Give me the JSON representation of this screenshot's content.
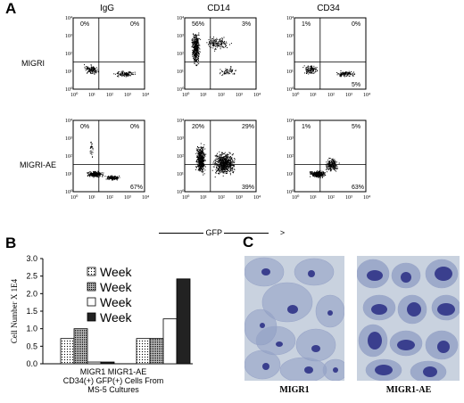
{
  "panelA": {
    "letter": "A",
    "columns": [
      "IgG",
      "CD14",
      "CD34"
    ],
    "rows": [
      "MIGRI",
      "MIGRI-AE"
    ],
    "x_axis_label": "GFP",
    "arrow_glyph": ">",
    "tick_labels": [
      "10⁰",
      "10¹",
      "10²",
      "10³",
      "10⁴"
    ],
    "plots": [
      {
        "row": "MIGRI",
        "col": "IgG",
        "quadrants": {
          "ul": "0%",
          "ur": "0%",
          "lr": ""
        }
      },
      {
        "row": "MIGRI",
        "col": "CD14",
        "quadrants": {
          "ul": "56%",
          "ur": "3%",
          "lr": ""
        }
      },
      {
        "row": "MIGRI",
        "col": "CD34",
        "quadrants": {
          "ul": "1%",
          "ur": "0%",
          "lr": "5%"
        }
      },
      {
        "row": "MIGRI-AE",
        "col": "IgG",
        "quadrants": {
          "ul": "0%",
          "ur": "0%",
          "lr": "67%"
        }
      },
      {
        "row": "MIGRI-AE",
        "col": "CD14",
        "quadrants": {
          "ul": "20%",
          "ur": "29%",
          "lr": "39%"
        }
      },
      {
        "row": "MIGRI-AE",
        "col": "CD34",
        "quadrants": {
          "ul": "1%",
          "ur": "5%",
          "lr": "63%"
        }
      }
    ]
  },
  "panelB": {
    "letter": "B",
    "chart_data": {
      "type": "bar",
      "ylabel": "Cell Number X 1E4",
      "ylim": [
        0,
        3.0
      ],
      "yticks": [
        "0.0",
        "0.5",
        "1.0",
        "1.5",
        "2.0",
        "2.5",
        "3.0"
      ],
      "categories": [
        "MIGR1",
        "MIGR1-AE"
      ],
      "xlabel_lines": [
        "MIGR1      MIGR1-AE",
        "CD34(+)  GFP(+)  Cells  From",
        "MS-5  Cultures"
      ],
      "legend_placement": "top-center",
      "series": [
        {
          "name": "Week",
          "pattern": "dots-light",
          "values": [
            0.72,
            0.72
          ]
        },
        {
          "name": "Week",
          "pattern": "dots-dense",
          "values": [
            1.0,
            0.72
          ]
        },
        {
          "name": "Week",
          "pattern": "white",
          "values": [
            0.05,
            1.28
          ]
        },
        {
          "name": "Week",
          "pattern": "dark",
          "values": [
            0.05,
            2.42
          ]
        }
      ]
    }
  },
  "panelC": {
    "letter": "C",
    "captions": [
      "MIGR1",
      "MIGR1-AE"
    ],
    "colors": {
      "background": "#c9d2df",
      "cell": "#8e9cc3",
      "nucleus": "#3a3f8e"
    }
  }
}
